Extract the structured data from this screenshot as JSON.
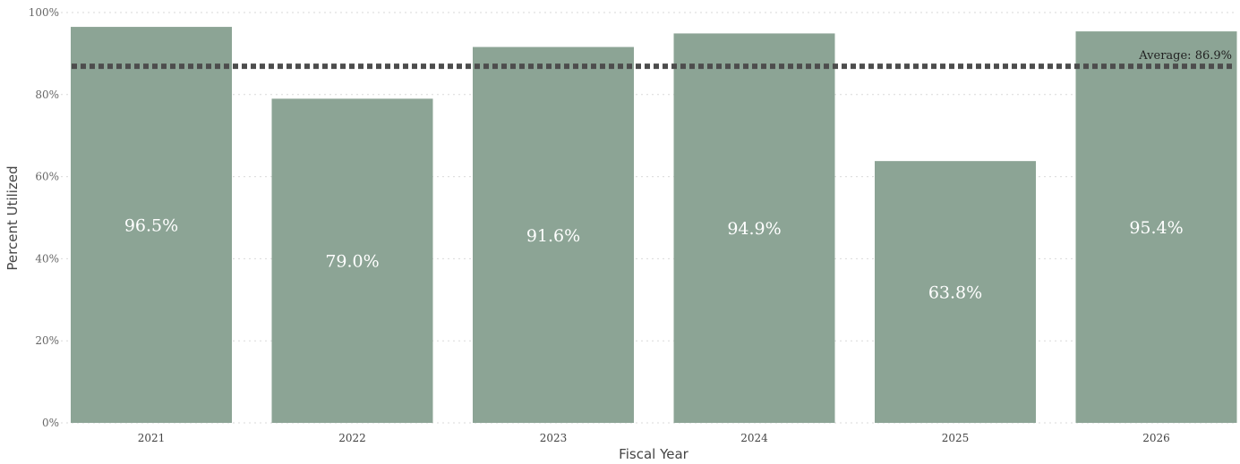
{
  "chart_data": {
    "type": "bar",
    "categories": [
      "2021",
      "2022",
      "2023",
      "2024",
      "2025",
      "2026"
    ],
    "values": [
      96.5,
      79.0,
      91.6,
      94.9,
      63.8,
      95.4
    ],
    "value_labels": [
      "96.5%",
      "79.0%",
      "91.6%",
      "94.9%",
      "63.8%",
      "95.4%"
    ],
    "title": "",
    "xlabel": "Fiscal Year",
    "ylabel": "Percent Utilized",
    "ylim": [
      0,
      100
    ],
    "y_ticks": [
      0,
      20,
      40,
      60,
      80,
      100
    ],
    "y_tick_labels": [
      "0%",
      "20%",
      "40%",
      "60%",
      "80%",
      "100%"
    ],
    "grid": true,
    "average": {
      "value": 86.9,
      "label": "Average: 86.9%"
    },
    "colors": {
      "bar": "#8ca495",
      "average_line": "#4d4d4d",
      "grid": "#d9d9d9"
    }
  }
}
